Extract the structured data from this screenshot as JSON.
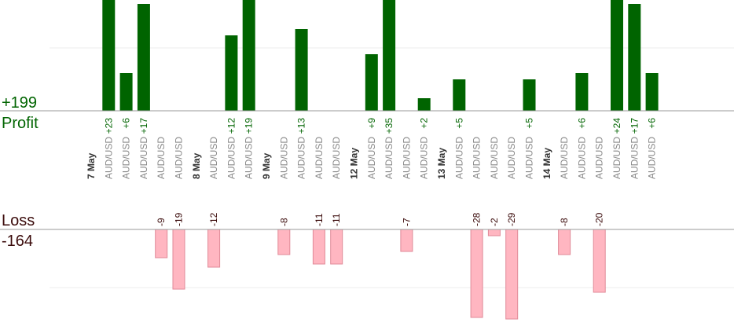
{
  "summary": {
    "profit_total": "+199",
    "profit_label": "Profit",
    "loss_label": "Loss",
    "loss_total": "-164"
  },
  "colors": {
    "profit_bar": "#006400",
    "profit_text": "#006400",
    "loss_bar": "#ffb6c1",
    "loss_bar_stroke": "#e08a98",
    "loss_text": "#3a0a0a",
    "axis": "#999999",
    "grid": "#eeeeee",
    "date_text": "#333333",
    "symbol_text": "#888888"
  },
  "chart_data": {
    "type": "bar",
    "title": "",
    "xlabel": "",
    "ylabel": "",
    "columns": [
      {
        "date": "7 May"
      },
      {
        "symbol": "AUD/USD",
        "profit": 23
      },
      {
        "symbol": "AUD/USD",
        "profit": 6
      },
      {
        "symbol": "AUD/USD",
        "profit": 17
      },
      {
        "symbol": "AUD/USD",
        "loss": -9
      },
      {
        "symbol": "AUD/USD",
        "loss": -19
      },
      {
        "date": "8 May"
      },
      {
        "symbol": "AUD/USD",
        "loss": -12
      },
      {
        "symbol": "AUD/USD",
        "profit": 12
      },
      {
        "symbol": "AUD/USD",
        "profit": 19
      },
      {
        "date": "9 May"
      },
      {
        "symbol": "AUD/USD",
        "loss": -8
      },
      {
        "symbol": "AUD/USD",
        "profit": 13
      },
      {
        "symbol": "AUD/USD",
        "loss": -11
      },
      {
        "symbol": "AUD/USD",
        "loss": -11
      },
      {
        "date": "12 May"
      },
      {
        "symbol": "AUD/USD",
        "profit": 9
      },
      {
        "symbol": "AUD/USD",
        "profit": 35
      },
      {
        "symbol": "AUD/USD",
        "loss": -7
      },
      {
        "symbol": "AUD/USD",
        "profit": 2
      },
      {
        "date": "13 May"
      },
      {
        "symbol": "AUD/USD",
        "profit": 5
      },
      {
        "symbol": "AUD/USD",
        "loss": -28
      },
      {
        "symbol": "AUD/USD",
        "loss": -2
      },
      {
        "symbol": "AUD/USD",
        "loss": -29
      },
      {
        "symbol": "AUD/USD",
        "profit": 5
      },
      {
        "date": "14 May"
      },
      {
        "symbol": "AUD/USD",
        "loss": -8
      },
      {
        "symbol": "AUD/USD",
        "profit": 6
      },
      {
        "symbol": "AUD/USD",
        "loss": -20
      },
      {
        "symbol": "AUD/USD",
        "profit": 24
      },
      {
        "symbol": "AUD/USD",
        "profit": 17
      },
      {
        "symbol": "AUD/USD",
        "profit": 6
      }
    ]
  }
}
